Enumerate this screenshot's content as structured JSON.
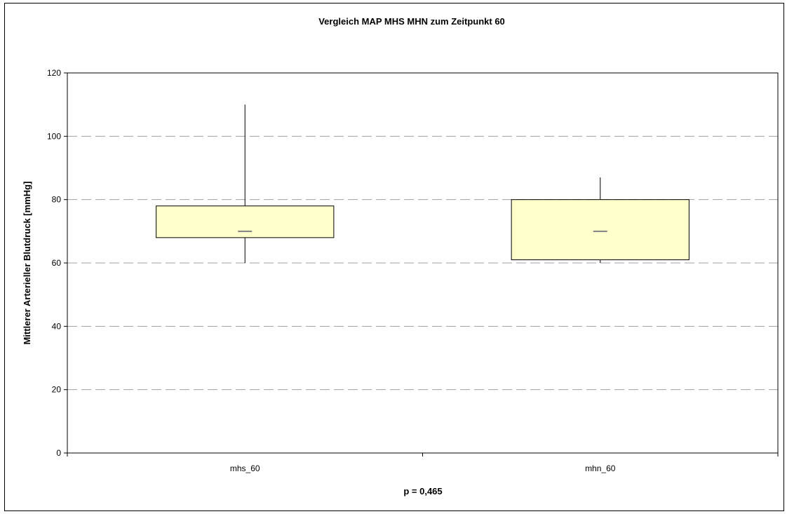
{
  "chart_data": {
    "type": "box",
    "title": "Vergleich MAP MHS MHN zum Zeitpunkt 60",
    "ylabel": "Mittlerer Arterieller Blutdruck [mmHg]",
    "xlabel": "",
    "footnote": "p = 0,465",
    "ylim": [
      0,
      120
    ],
    "yticks": [
      0,
      20,
      40,
      60,
      80,
      100,
      120
    ],
    "grid": true,
    "categories": [
      "mhs_60",
      "mhn_60"
    ],
    "boxes": [
      {
        "label": "mhs_60",
        "min": 60,
        "q1": 68,
        "median": 70,
        "q3": 78,
        "max": 110
      },
      {
        "label": "mhn_60",
        "min": 60,
        "q1": 61,
        "median": 70,
        "q3": 80,
        "max": 87
      }
    ],
    "colors": {
      "box_fill": "#FFFFCC",
      "median": "#808080",
      "grid": "#A0A0A0"
    }
  }
}
